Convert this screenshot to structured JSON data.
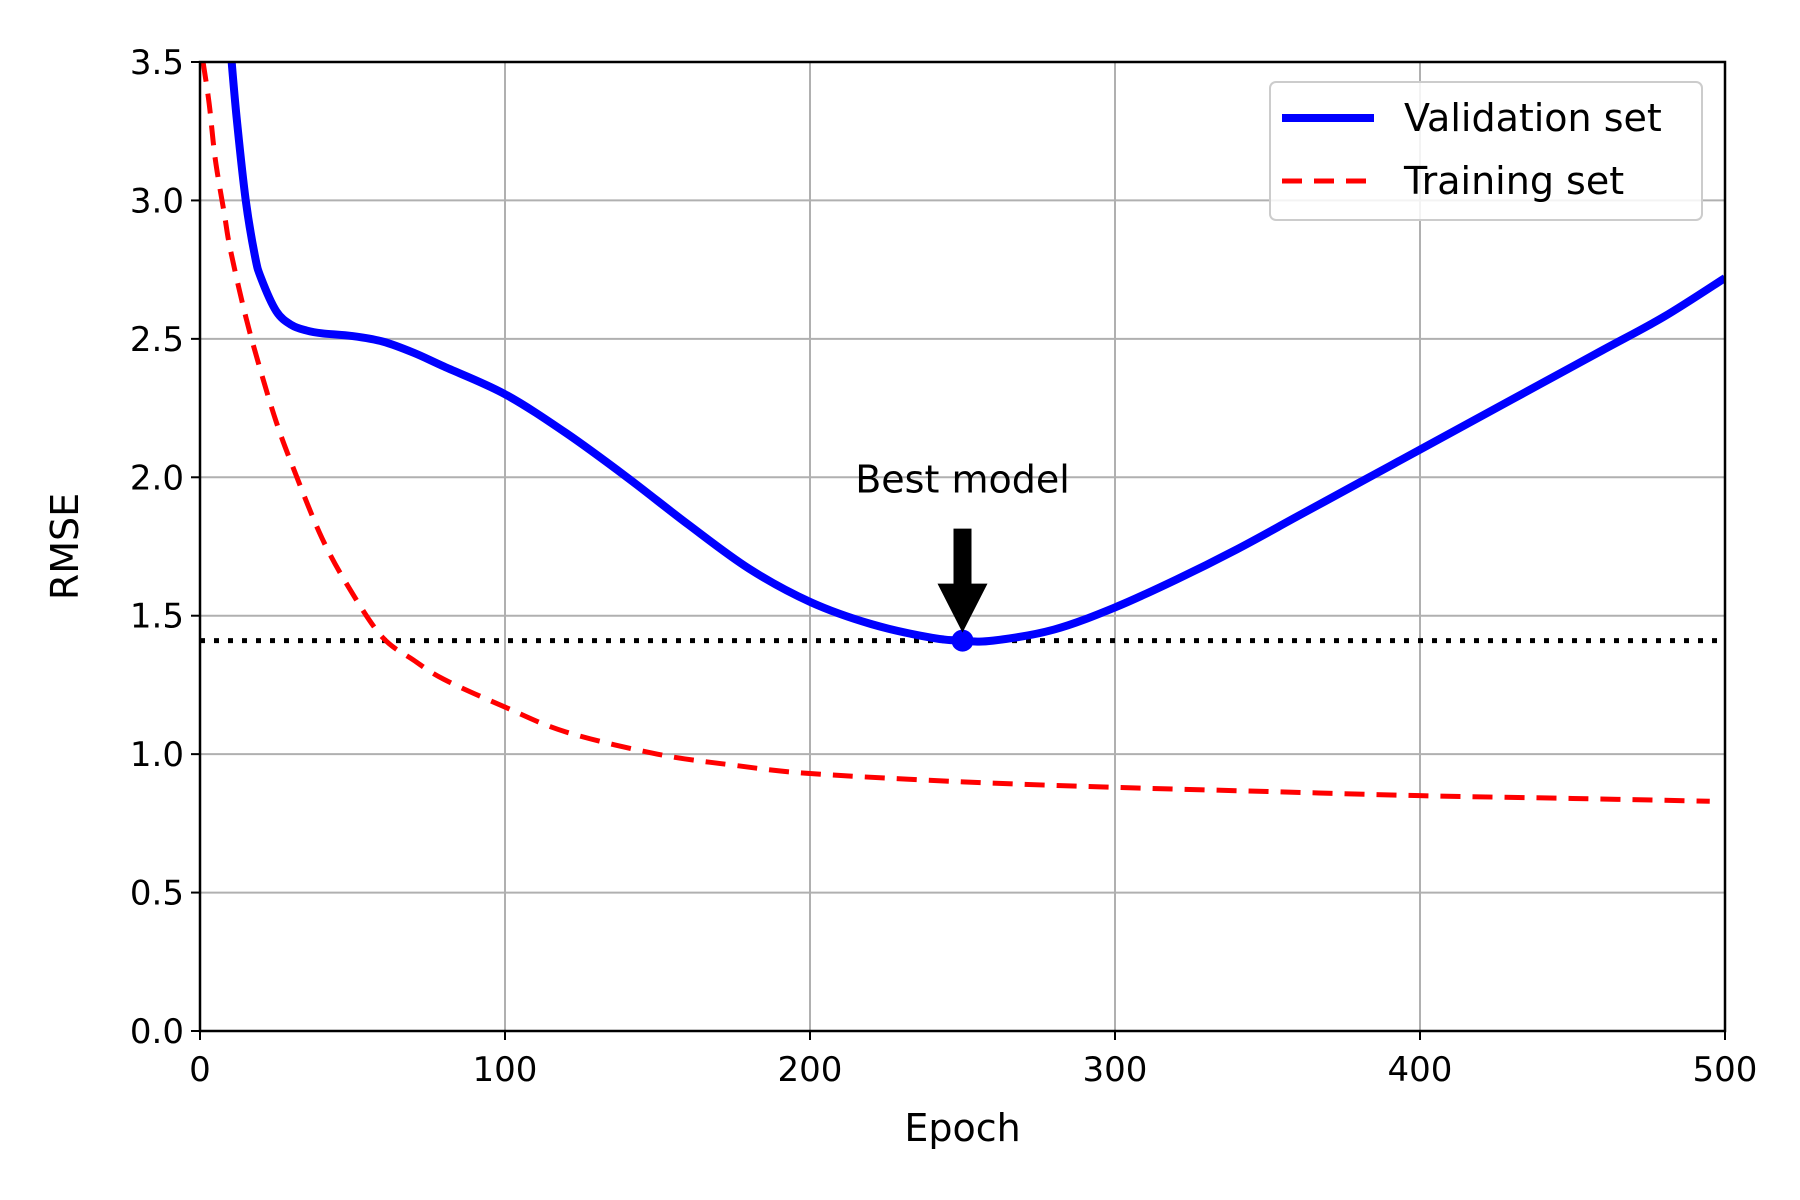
{
  "chart_data": {
    "type": "line",
    "title": "",
    "xlabel": "Epoch",
    "ylabel": "RMSE",
    "xlim": [
      0,
      500
    ],
    "ylim": [
      0,
      3.5
    ],
    "xticks": [
      0,
      100,
      200,
      300,
      400,
      500
    ],
    "xtick_labels": [
      "0",
      "100",
      "200",
      "300",
      "400",
      "500"
    ],
    "yticks": [
      0,
      0.5,
      1.0,
      1.5,
      2.0,
      2.5,
      3.0,
      3.5
    ],
    "ytick_labels": [
      "0.0",
      "0.5",
      "1.0",
      "1.5",
      "2.0",
      "2.5",
      "3.0",
      "3.5"
    ],
    "grid": true,
    "legend_position": "top-right",
    "series": [
      {
        "name": "Validation set",
        "color": "#0000ff",
        "style": "solid",
        "x": [
          10,
          12,
          15,
          18,
          20,
          25,
          30,
          35,
          40,
          50,
          60,
          70,
          80,
          100,
          120,
          140,
          160,
          180,
          200,
          220,
          240,
          250,
          260,
          280,
          300,
          320,
          340,
          360,
          380,
          400,
          420,
          440,
          460,
          480,
          500
        ],
        "y": [
          3.55,
          3.3,
          3.0,
          2.8,
          2.72,
          2.6,
          2.55,
          2.53,
          2.52,
          2.51,
          2.49,
          2.45,
          2.4,
          2.3,
          2.16,
          2.0,
          1.83,
          1.67,
          1.55,
          1.47,
          1.42,
          1.41,
          1.41,
          1.45,
          1.53,
          1.63,
          1.74,
          1.86,
          1.98,
          2.1,
          2.22,
          2.34,
          2.46,
          2.58,
          2.72
        ]
      },
      {
        "name": "Training set",
        "color": "#ff0000",
        "style": "dashed",
        "x": [
          1,
          3,
          5,
          8,
          10,
          15,
          20,
          25,
          30,
          40,
          50,
          60,
          70,
          80,
          100,
          120,
          150,
          175,
          200,
          250,
          300,
          350,
          400,
          450,
          495
        ],
        "y": [
          3.5,
          3.35,
          3.15,
          2.95,
          2.82,
          2.58,
          2.38,
          2.2,
          2.05,
          1.78,
          1.58,
          1.42,
          1.34,
          1.27,
          1.17,
          1.08,
          1.0,
          0.96,
          0.93,
          0.9,
          0.88,
          0.865,
          0.85,
          0.84,
          0.83
        ]
      }
    ],
    "reference_line": {
      "y": 1.41,
      "color": "#000000",
      "style": "dotted"
    },
    "best_point": {
      "x": 250,
      "y": 1.41,
      "color": "#0000ff"
    },
    "annotation": {
      "text": "Best model",
      "arrow_color": "#000000"
    }
  }
}
